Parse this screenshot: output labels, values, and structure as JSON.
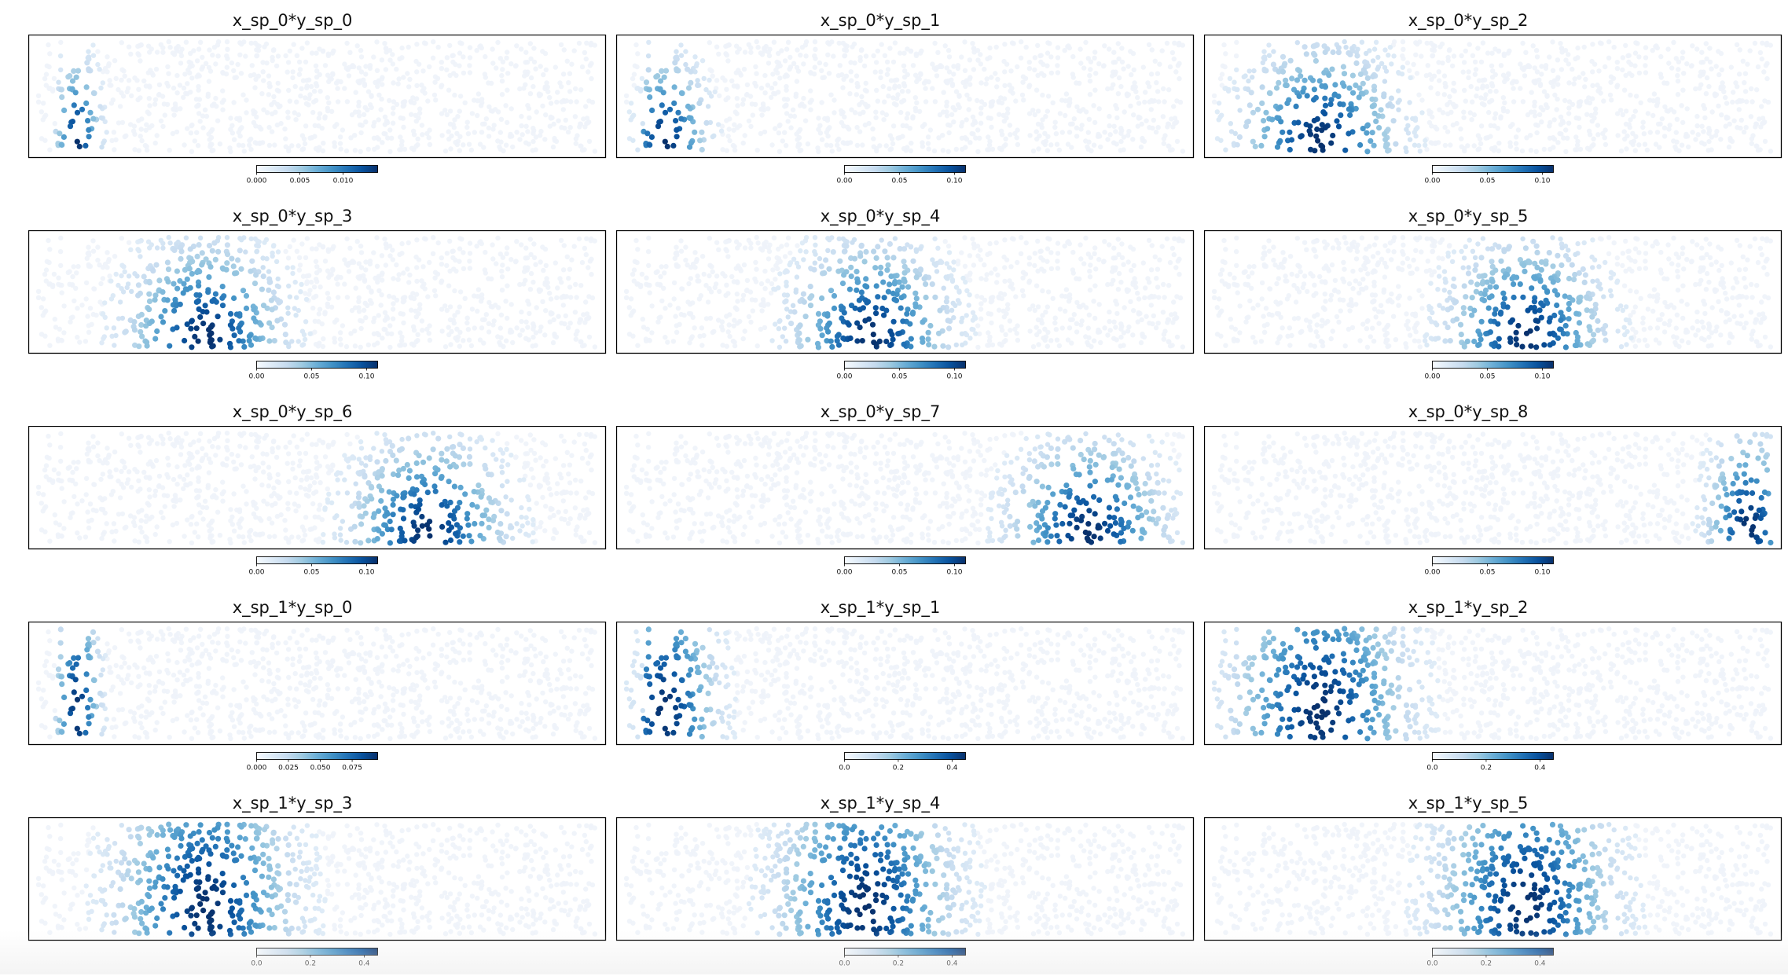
{
  "figure": {
    "colormap": [
      "#f7fbff",
      "#deebf7",
      "#c6dbef",
      "#9ecae1",
      "#6baed6",
      "#4292c6",
      "#2171b5",
      "#08519c",
      "#08306b"
    ],
    "background_point_color": "#eef3fa",
    "frame_color": "#000000"
  },
  "chart_data": [
    {
      "type": "scatter",
      "title": "x_sp_0*y_sp_0",
      "peak": {
        "x": 0.07,
        "y": 0.1,
        "sx": 0.022,
        "sy": 0.4,
        "left_edge": true
      },
      "colorbar": {
        "vmin": 0.0,
        "vmax": 0.014,
        "ticks": [
          "0.000",
          "0.005",
          "0.010"
        ],
        "tick_values": [
          0.0,
          0.005,
          0.01
        ]
      }
    },
    {
      "type": "scatter",
      "title": "x_sp_0*y_sp_1",
      "peak": {
        "x": 0.07,
        "y": 0.1,
        "sx": 0.04,
        "sy": 0.4,
        "left_edge": true
      },
      "colorbar": {
        "vmin": 0.0,
        "vmax": 0.11,
        "ticks": [
          "0.00",
          "0.05",
          "0.10"
        ],
        "tick_values": [
          0.0,
          0.05,
          0.1
        ]
      }
    },
    {
      "type": "scatter",
      "title": "x_sp_0*y_sp_2",
      "peak": {
        "x": 0.19,
        "y": 0.1,
        "sx": 0.075,
        "sy": 0.45
      },
      "colorbar": {
        "vmin": 0.0,
        "vmax": 0.11,
        "ticks": [
          "0.00",
          "0.05",
          "0.10"
        ],
        "tick_values": [
          0.0,
          0.05,
          0.1
        ]
      }
    },
    {
      "type": "scatter",
      "title": "x_sp_0*y_sp_3",
      "peak": {
        "x": 0.3,
        "y": 0.1,
        "sx": 0.075,
        "sy": 0.45
      },
      "colorbar": {
        "vmin": 0.0,
        "vmax": 0.11,
        "ticks": [
          "0.00",
          "0.05",
          "0.10"
        ],
        "tick_values": [
          0.0,
          0.05,
          0.1
        ]
      }
    },
    {
      "type": "scatter",
      "title": "x_sp_0*y_sp_4",
      "peak": {
        "x": 0.44,
        "y": 0.1,
        "sx": 0.075,
        "sy": 0.45
      },
      "colorbar": {
        "vmin": 0.0,
        "vmax": 0.11,
        "ticks": [
          "0.00",
          "0.05",
          "0.10"
        ],
        "tick_values": [
          0.0,
          0.05,
          0.1
        ]
      }
    },
    {
      "type": "scatter",
      "title": "x_sp_0*y_sp_5",
      "peak": {
        "x": 0.56,
        "y": 0.1,
        "sx": 0.075,
        "sy": 0.45
      },
      "colorbar": {
        "vmin": 0.0,
        "vmax": 0.11,
        "ticks": [
          "0.00",
          "0.05",
          "0.10"
        ],
        "tick_values": [
          0.0,
          0.05,
          0.1
        ]
      }
    },
    {
      "type": "scatter",
      "title": "x_sp_0*y_sp_6",
      "peak": {
        "x": 0.7,
        "y": 0.1,
        "sx": 0.075,
        "sy": 0.45
      },
      "colorbar": {
        "vmin": 0.0,
        "vmax": 0.11,
        "ticks": [
          "0.00",
          "0.05",
          "0.10"
        ],
        "tick_values": [
          0.0,
          0.05,
          0.1
        ]
      }
    },
    {
      "type": "scatter",
      "title": "x_sp_0*y_sp_7",
      "peak": {
        "x": 0.83,
        "y": 0.1,
        "sx": 0.075,
        "sy": 0.45
      },
      "colorbar": {
        "vmin": 0.0,
        "vmax": 0.11,
        "ticks": [
          "0.00",
          "0.05",
          "0.10"
        ],
        "tick_values": [
          0.0,
          0.05,
          0.1
        ]
      }
    },
    {
      "type": "scatter",
      "title": "x_sp_0*y_sp_8",
      "peak": {
        "x": 0.96,
        "y": 0.15,
        "sx": 0.04,
        "sy": 0.45
      },
      "colorbar": {
        "vmin": 0.0,
        "vmax": 0.11,
        "ticks": [
          "0.00",
          "0.05",
          "0.10"
        ],
        "tick_values": [
          0.0,
          0.05,
          0.1
        ]
      }
    },
    {
      "type": "scatter",
      "title": "x_sp_1*y_sp_0",
      "peak": {
        "x": 0.07,
        "y": 0.25,
        "sx": 0.022,
        "sy": 0.6,
        "left_edge": true
      },
      "colorbar": {
        "vmin": 0.0,
        "vmax": 0.095,
        "ticks": [
          "0.000",
          "0.025",
          "0.050",
          "0.075"
        ],
        "tick_values": [
          0.0,
          0.025,
          0.05,
          0.075
        ]
      }
    },
    {
      "type": "scatter",
      "title": "x_sp_1*y_sp_1",
      "peak": {
        "x": 0.07,
        "y": 0.25,
        "sx": 0.05,
        "sy": 0.65,
        "left_edge": true
      },
      "colorbar": {
        "vmin": 0.0,
        "vmax": 0.45,
        "ticks": [
          "0.0",
          "0.2",
          "0.4"
        ],
        "tick_values": [
          0.0,
          0.2,
          0.4
        ]
      }
    },
    {
      "type": "scatter",
      "title": "x_sp_1*y_sp_2",
      "peak": {
        "x": 0.19,
        "y": 0.25,
        "sx": 0.085,
        "sy": 0.7
      },
      "colorbar": {
        "vmin": 0.0,
        "vmax": 0.45,
        "ticks": [
          "0.0",
          "0.2",
          "0.4"
        ],
        "tick_values": [
          0.0,
          0.2,
          0.4
        ]
      }
    },
    {
      "type": "scatter",
      "title": "x_sp_1*y_sp_3",
      "peak": {
        "x": 0.3,
        "y": 0.25,
        "sx": 0.085,
        "sy": 0.7
      },
      "colorbar": {
        "vmin": 0.0,
        "vmax": 0.45,
        "ticks": [
          "0.0",
          "0.2",
          "0.4"
        ],
        "tick_values": [
          0.0,
          0.2,
          0.4
        ]
      }
    },
    {
      "type": "scatter",
      "title": "x_sp_1*y_sp_4",
      "peak": {
        "x": 0.43,
        "y": 0.25,
        "sx": 0.085,
        "sy": 0.7
      },
      "colorbar": {
        "vmin": 0.0,
        "vmax": 0.45,
        "ticks": [
          "0.0",
          "0.2",
          "0.4"
        ],
        "tick_values": [
          0.0,
          0.2,
          0.4
        ]
      }
    },
    {
      "type": "scatter",
      "title": "x_sp_1*y_sp_5",
      "peak": {
        "x": 0.56,
        "y": 0.25,
        "sx": 0.085,
        "sy": 0.7
      },
      "colorbar": {
        "vmin": 0.0,
        "vmax": 0.45,
        "ticks": [
          "0.0",
          "0.2",
          "0.4"
        ],
        "tick_values": [
          0.0,
          0.2,
          0.4
        ]
      }
    }
  ]
}
